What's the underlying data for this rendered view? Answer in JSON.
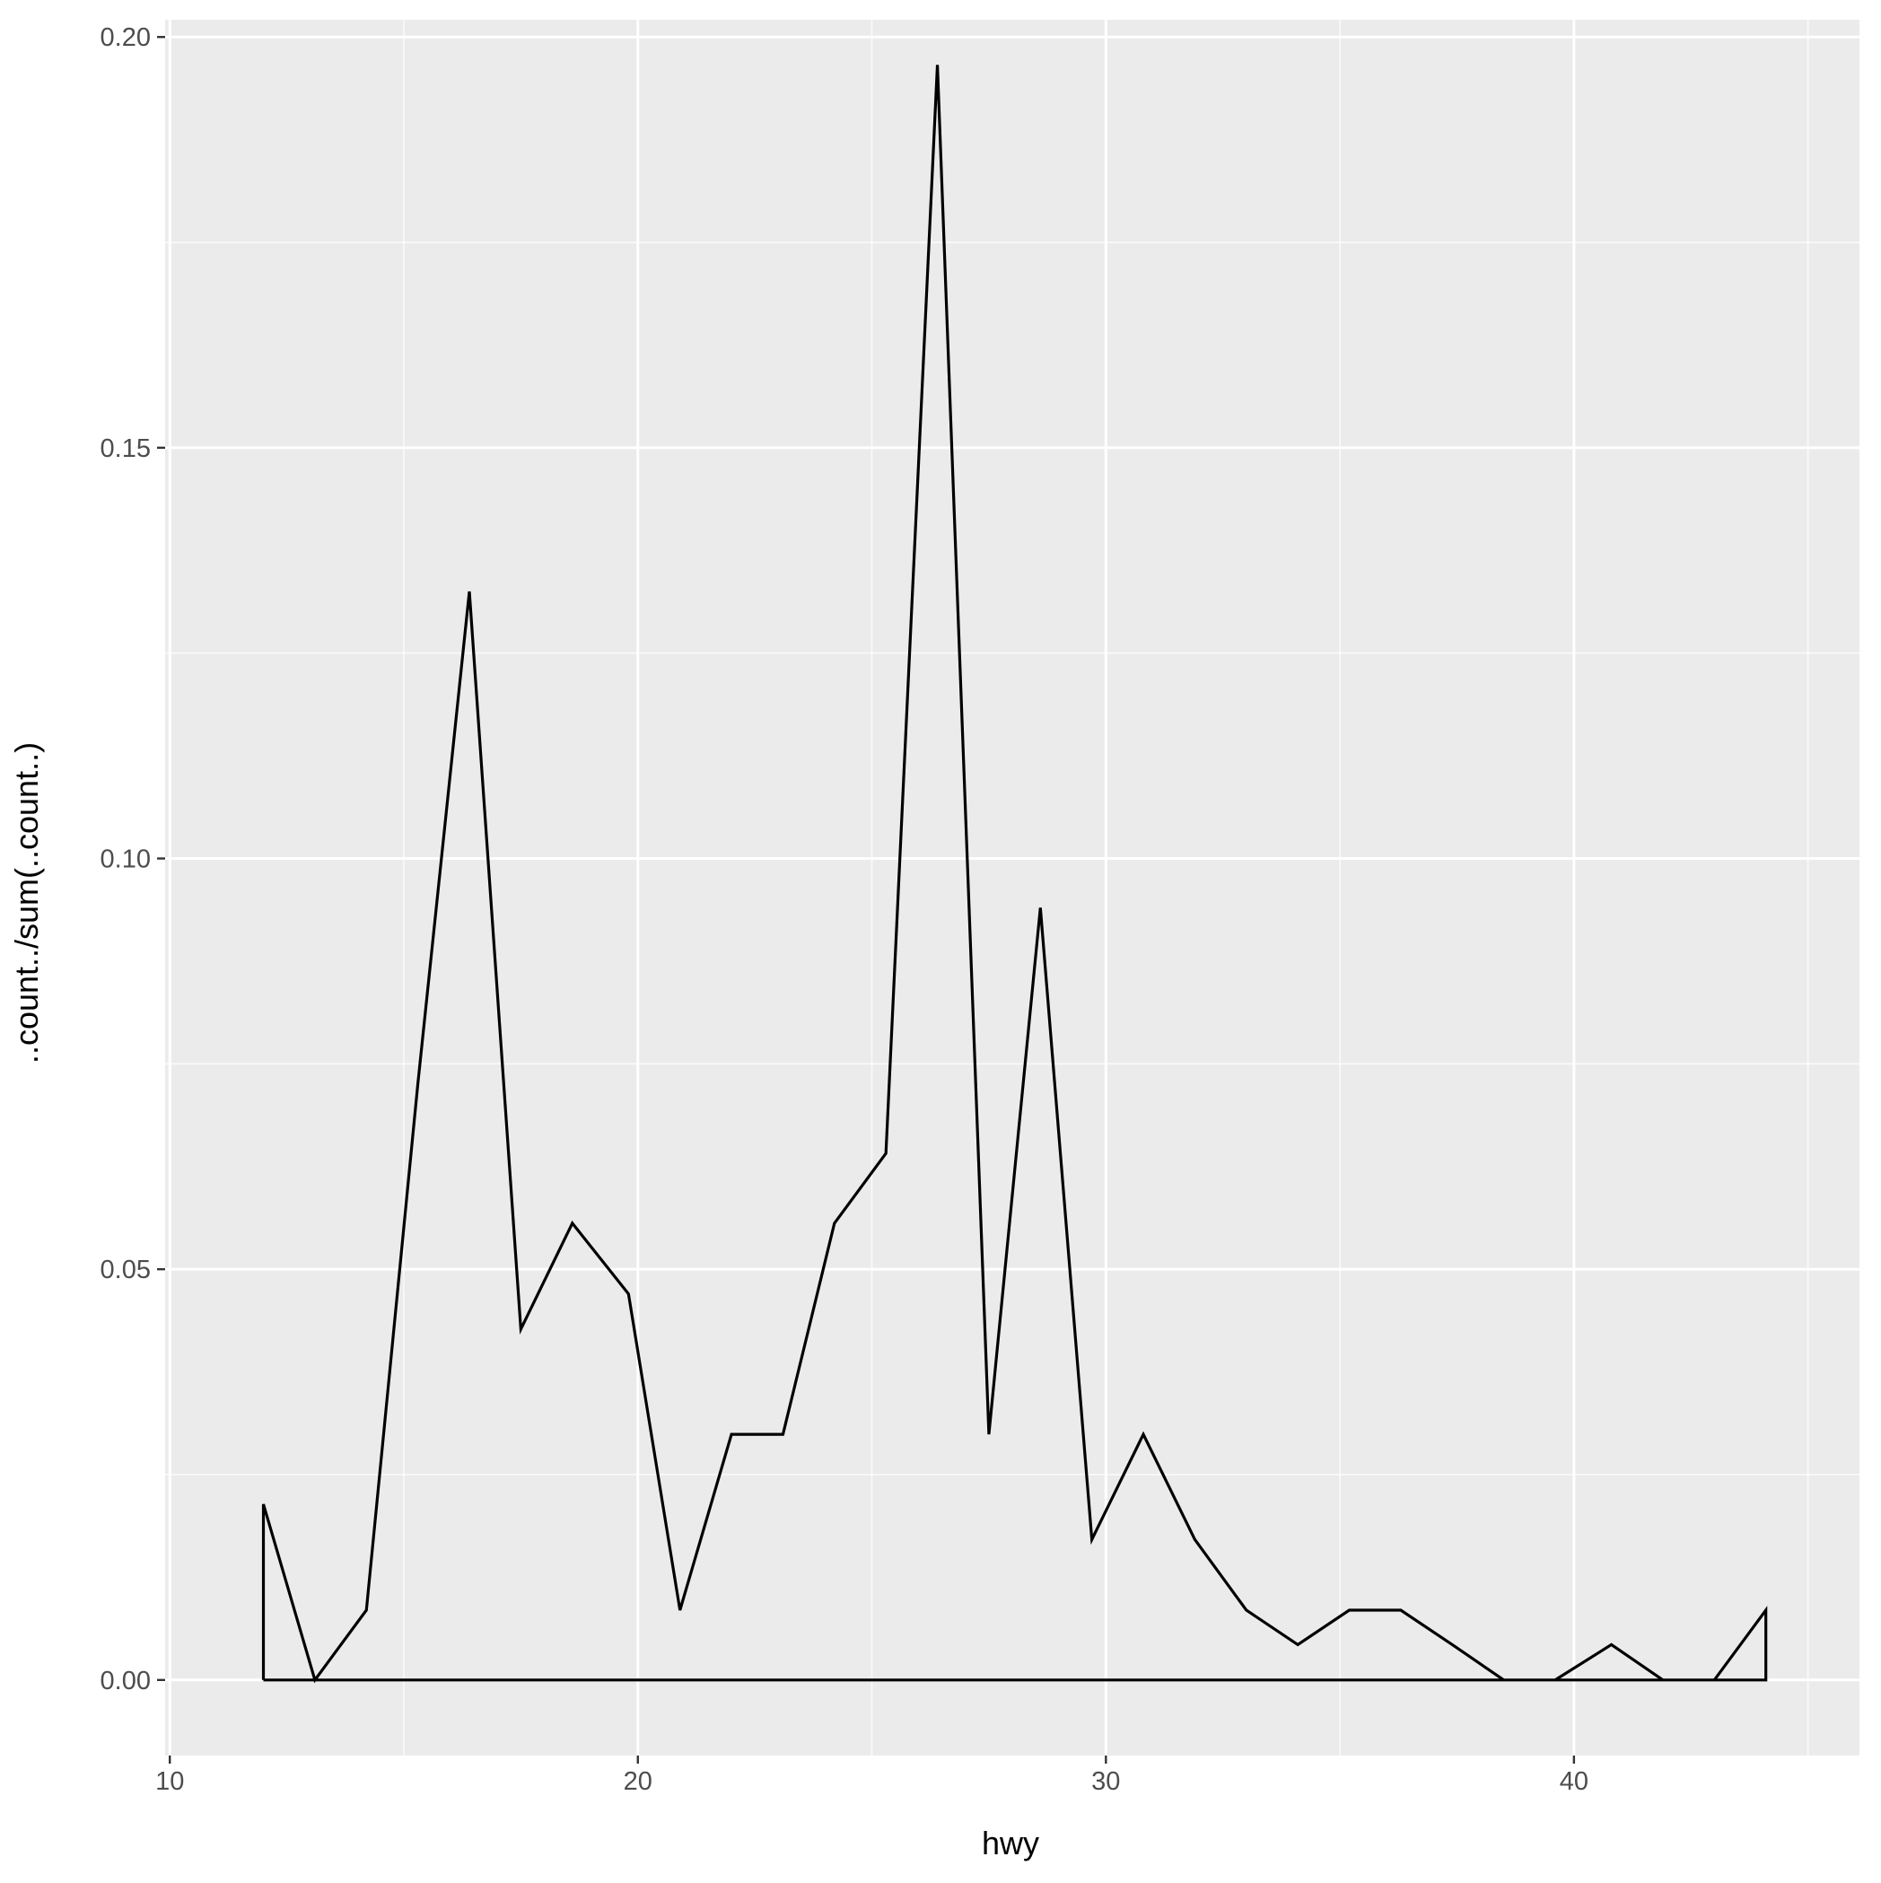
{
  "colors": {
    "panel_background": "#ebebeb",
    "grid_major": "#ffffff",
    "grid_minor": "#f5f5f5",
    "line": "#000000",
    "tick_label": "#4d4d4d"
  },
  "chart_data": {
    "type": "line",
    "title": "",
    "xlabel": "hwy",
    "ylabel": "..count../sum(..count..)",
    "xlim": [
      9.9,
      46.1
    ],
    "ylim": [
      -0.0092,
      0.2021
    ],
    "x_ticks": [
      10,
      20,
      30,
      40
    ],
    "x_tick_labels": [
      "10",
      "20",
      "30",
      "40"
    ],
    "y_ticks": [
      0.0,
      0.05,
      0.1,
      0.15,
      0.2
    ],
    "y_tick_labels": [
      "0.00",
      "0.05",
      "0.10",
      "0.15",
      "0.20"
    ],
    "grid": true,
    "legend": "none",
    "series": [
      {
        "x": [
          12.0,
          12.0,
          13.1,
          14.2,
          15.3,
          16.4,
          17.5,
          18.6,
          19.8,
          20.9,
          22.0,
          23.1,
          24.2,
          25.3,
          26.4,
          27.5,
          28.6,
          29.7,
          30.8,
          31.9,
          33.0,
          34.1,
          35.2,
          36.3,
          37.4,
          38.5,
          39.6,
          40.8,
          41.9,
          43.0,
          44.1,
          44.1,
          12.0
        ],
        "y": [
          0.0,
          0.0214,
          0.0,
          0.0085,
          0.0726,
          0.1325,
          0.0427,
          0.0556,
          0.047,
          0.0085,
          0.0299,
          0.0299,
          0.0556,
          0.0641,
          0.1966,
          0.0299,
          0.094,
          0.0171,
          0.0299,
          0.0171,
          0.0085,
          0.0043,
          0.0085,
          0.0085,
          0.0043,
          0.0,
          0.0,
          0.0043,
          0.0,
          0.0,
          0.0085,
          0.0,
          0.0
        ]
      }
    ]
  }
}
